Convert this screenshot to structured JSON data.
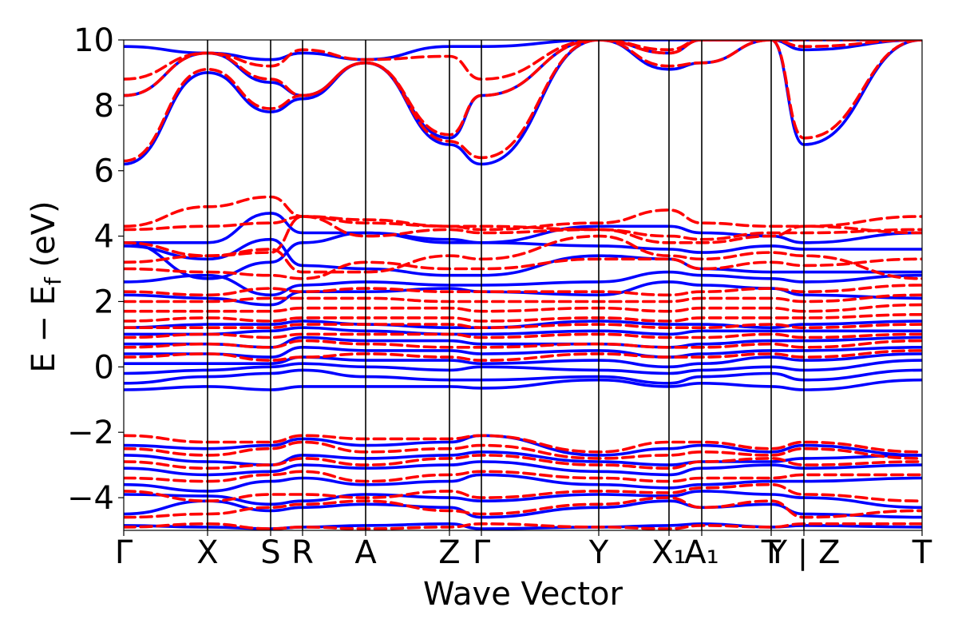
{
  "chart_data": {
    "type": "line",
    "title": "",
    "xlabel": "Wave Vector",
    "ylabel": "E − E_f (eV)",
    "ylabel_main": "E − E",
    "ylabel_sub": "f",
    "ylabel_unit": " (eV)",
    "ylim": [
      -5,
      10
    ],
    "xlim": [
      0,
      1
    ],
    "grid": false,
    "legend": "none",
    "y_ticks": [
      -4,
      -2,
      0,
      2,
      4,
      6,
      8,
      10
    ],
    "y_tick_labels": [
      "−4",
      "−2",
      "0",
      "2",
      "4",
      "6",
      "8",
      "10"
    ],
    "kpoints": [
      {
        "label": "Γ",
        "x": 0.0
      },
      {
        "label": "X",
        "x": 0.105
      },
      {
        "label": "S",
        "x": 0.184
      },
      {
        "label": "R",
        "x": 0.224
      },
      {
        "label": "A",
        "x": 0.303
      },
      {
        "label": "Z",
        "x": 0.408
      },
      {
        "label": "Γ",
        "x": 0.448
      },
      {
        "label": "Y",
        "x": 0.595
      },
      {
        "label": "X₁",
        "x": 0.683
      },
      {
        "label": "A₁",
        "x": 0.724
      },
      {
        "label": "T",
        "x": 0.811
      },
      {
        "label": "Y | Z",
        "x": 0.852
      },
      {
        "label": "T",
        "x": 1.0
      }
    ],
    "series": [
      {
        "style": "solid",
        "color": "#0000ff",
        "bands": [
          [
            -4.85,
            -4.9,
            -4.95,
            -4.9,
            -4.85,
            -4.8,
            -4.95,
            -4.9,
            -4.85,
            -4.8,
            -4.9,
            -4.85,
            -4.9
          ],
          [
            -4.5,
            -4.1,
            -4.4,
            -4.3,
            -4.2,
            -4.3,
            -4.6,
            -4.3,
            -4.1,
            -4.3,
            -4.2,
            -4.5,
            -4.6
          ],
          [
            -3.9,
            -3.95,
            -4.2,
            -4.1,
            -3.9,
            -4.0,
            -4.1,
            -3.9,
            -3.95,
            -3.8,
            -3.9,
            -4.0,
            -4.3
          ],
          [
            -3.6,
            -3.8,
            -3.5,
            -3.4,
            -3.6,
            -3.5,
            -3.3,
            -3.6,
            -3.7,
            -3.6,
            -3.5,
            -3.5,
            -3.4
          ],
          [
            -3.1,
            -3.3,
            -3.2,
            -3.0,
            -3.1,
            -3.0,
            -2.9,
            -3.2,
            -3.3,
            -3.1,
            -3.0,
            -3.1,
            -3.0
          ],
          [
            -2.7,
            -2.9,
            -3.0,
            -2.7,
            -2.8,
            -2.7,
            -2.6,
            -2.9,
            -3.0,
            -2.9,
            -2.9,
            -2.8,
            -2.7
          ],
          [
            -2.4,
            -2.5,
            -2.4,
            -2.2,
            -2.4,
            -2.3,
            -2.1,
            -2.7,
            -2.5,
            -2.4,
            -2.6,
            -2.4,
            -2.7
          ],
          [
            -0.7,
            -0.6,
            -0.7,
            -0.6,
            -0.6,
            -0.6,
            -0.65,
            -0.4,
            -0.6,
            -0.5,
            -0.6,
            -0.7,
            -0.4
          ],
          [
            -0.5,
            -0.3,
            -0.2,
            -0.1,
            -0.3,
            -0.4,
            -0.4,
            -0.3,
            -0.5,
            -0.3,
            -0.2,
            -0.4,
            -0.1
          ],
          [
            -0.2,
            -0.1,
            0.0,
            0.1,
            0.0,
            -0.1,
            0.0,
            -0.1,
            -0.2,
            -0.1,
            0.0,
            -0.1,
            0.2
          ],
          [
            0.1,
            0.1,
            0.1,
            0.3,
            0.2,
            0.2,
            0.1,
            0.2,
            0.0,
            0.1,
            0.3,
            0.2,
            0.4
          ],
          [
            0.4,
            0.4,
            0.3,
            0.6,
            0.5,
            0.5,
            0.4,
            0.5,
            0.3,
            0.4,
            0.5,
            0.5,
            0.6
          ],
          [
            0.7,
            0.7,
            0.6,
            0.9,
            0.8,
            0.8,
            0.7,
            0.7,
            0.6,
            0.7,
            0.8,
            0.8,
            0.9
          ],
          [
            1.0,
            1.0,
            1.1,
            1.2,
            1.1,
            1.0,
            1.0,
            1.1,
            1.0,
            1.1,
            1.1,
            1.1,
            1.1
          ],
          [
            1.2,
            1.3,
            1.3,
            1.4,
            1.3,
            1.2,
            1.2,
            1.4,
            1.3,
            1.3,
            1.2,
            1.3,
            1.4
          ],
          [
            2.2,
            2.1,
            1.9,
            2.3,
            2.3,
            2.4,
            2.3,
            2.2,
            2.6,
            2.5,
            2.4,
            2.2,
            2.1
          ],
          [
            2.6,
            2.8,
            2.2,
            2.5,
            2.6,
            2.5,
            2.5,
            2.6,
            2.9,
            2.8,
            2.7,
            2.6,
            2.8
          ],
          [
            3.8,
            2.7,
            3.2,
            3.8,
            4.1,
            3.8,
            3.8,
            4.3,
            4.3,
            4.1,
            4.0,
            3.8,
            4.1
          ],
          [
            3.8,
            3.8,
            4.7,
            4.1,
            4.1,
            3.9,
            3.8,
            3.7,
            3.6,
            3.5,
            3.7,
            3.6,
            3.6
          ],
          [
            3.7,
            3.3,
            3.9,
            3.1,
            3.0,
            2.8,
            2.8,
            3.4,
            3.3,
            3.0,
            2.9,
            2.9,
            2.9
          ],
          [
            6.2,
            9.0,
            7.8,
            8.2,
            9.3,
            6.8,
            6.2,
            10.0,
            9.1,
            9.3,
            10.0,
            6.8,
            10.0
          ],
          [
            8.3,
            9.6,
            8.7,
            8.3,
            9.3,
            7.0,
            8.3,
            10.0,
            9.6,
            10.0,
            10.0,
            9.7,
            10.0
          ],
          [
            9.8,
            9.6,
            9.4,
            9.6,
            9.4,
            9.8,
            9.8,
            10.0,
            10.0,
            10.0,
            10.0,
            10.0,
            10.0
          ]
        ]
      },
      {
        "style": "dashed",
        "color": "#ff0000",
        "bands": [
          [
            -4.9,
            -4.8,
            -4.95,
            -4.9,
            -4.95,
            -4.9,
            -4.8,
            -4.9,
            -4.95,
            -4.85,
            -4.9,
            -4.8,
            -4.8
          ],
          [
            -4.6,
            -4.5,
            -4.3,
            -4.2,
            -4.1,
            -4.4,
            -4.5,
            -4.2,
            -4.0,
            -4.3,
            -4.1,
            -4.6,
            -4.4
          ],
          [
            -3.8,
            -4.1,
            -3.9,
            -3.9,
            -4.0,
            -3.8,
            -4.0,
            -3.8,
            -3.85,
            -3.7,
            -3.6,
            -3.9,
            -4.1
          ],
          [
            -3.4,
            -3.5,
            -3.3,
            -3.2,
            -3.5,
            -3.3,
            -3.2,
            -3.4,
            -3.5,
            -3.4,
            -3.4,
            -3.3,
            -3.3
          ],
          [
            -2.9,
            -3.1,
            -3.0,
            -2.8,
            -3.0,
            -2.8,
            -2.7,
            -3.0,
            -3.1,
            -2.9,
            -2.8,
            -3.0,
            -2.9
          ],
          [
            -2.5,
            -2.7,
            -2.5,
            -2.3,
            -2.6,
            -2.5,
            -2.4,
            -2.8,
            -2.7,
            -2.6,
            -2.7,
            -2.5,
            -2.8
          ],
          [
            -2.1,
            -2.3,
            -2.3,
            -2.1,
            -2.2,
            -2.2,
            -2.1,
            -2.6,
            -2.3,
            -2.3,
            -2.5,
            -2.3,
            -2.6
          ],
          [
            0.3,
            0.4,
            0.2,
            0.3,
            0.4,
            0.3,
            0.2,
            0.4,
            0.3,
            0.3,
            0.4,
            0.3,
            0.5
          ],
          [
            0.6,
            0.7,
            0.6,
            0.8,
            0.7,
            0.6,
            0.6,
            0.7,
            0.6,
            0.6,
            0.7,
            0.6,
            0.8
          ],
          [
            0.9,
            1.0,
            0.9,
            1.0,
            1.0,
            1.0,
            0.9,
            1.0,
            0.9,
            0.9,
            1.0,
            0.9,
            1.0
          ],
          [
            1.2,
            1.2,
            1.2,
            1.3,
            1.3,
            1.3,
            1.2,
            1.3,
            1.2,
            1.2,
            1.3,
            1.2,
            1.3
          ],
          [
            1.4,
            1.5,
            1.4,
            1.5,
            1.5,
            1.5,
            1.4,
            1.5,
            1.4,
            1.5,
            1.5,
            1.5,
            1.6
          ],
          [
            1.7,
            1.7,
            1.7,
            1.8,
            1.8,
            1.8,
            1.7,
            1.8,
            1.7,
            1.8,
            1.8,
            1.7,
            1.9
          ],
          [
            2.0,
            2.0,
            2.1,
            2.1,
            2.1,
            2.0,
            2.0,
            2.0,
            2.0,
            2.1,
            2.1,
            2.0,
            2.2
          ],
          [
            2.3,
            2.2,
            2.4,
            2.3,
            2.4,
            2.3,
            2.3,
            2.3,
            2.2,
            2.3,
            2.4,
            2.3,
            2.5
          ],
          [
            3.0,
            2.9,
            2.8,
            2.7,
            3.2,
            3.0,
            3.0,
            3.3,
            3.3,
            3.0,
            3.2,
            3.1,
            3.3
          ],
          [
            3.2,
            3.4,
            3.6,
            2.9,
            2.9,
            3.4,
            3.3,
            4.0,
            3.4,
            3.3,
            3.5,
            3.4,
            2.7
          ],
          [
            3.8,
            3.4,
            3.5,
            4.6,
            4.0,
            4.2,
            4.1,
            4.2,
            4.0,
            3.9,
            4.1,
            4.1,
            4.2
          ],
          [
            4.2,
            4.3,
            4.4,
            4.6,
            4.4,
            4.3,
            4.2,
            4.4,
            4.8,
            4.4,
            4.3,
            4.3,
            4.6
          ],
          [
            4.3,
            4.9,
            5.2,
            4.6,
            4.5,
            4.3,
            4.3,
            4.2,
            3.8,
            3.8,
            4.0,
            4.3,
            4.1
          ],
          [
            6.3,
            9.1,
            7.9,
            8.3,
            9.3,
            6.9,
            6.4,
            10.0,
            9.2,
            9.3,
            10.0,
            7.0,
            10.0
          ],
          [
            8.3,
            9.6,
            8.8,
            8.3,
            9.3,
            7.1,
            8.3,
            10.0,
            9.6,
            10.0,
            10.0,
            9.8,
            10.0
          ],
          [
            8.8,
            9.6,
            9.2,
            9.7,
            9.4,
            9.5,
            8.8,
            10.0,
            9.7,
            10.0,
            10.0,
            10.0,
            10.0
          ]
        ]
      }
    ]
  }
}
